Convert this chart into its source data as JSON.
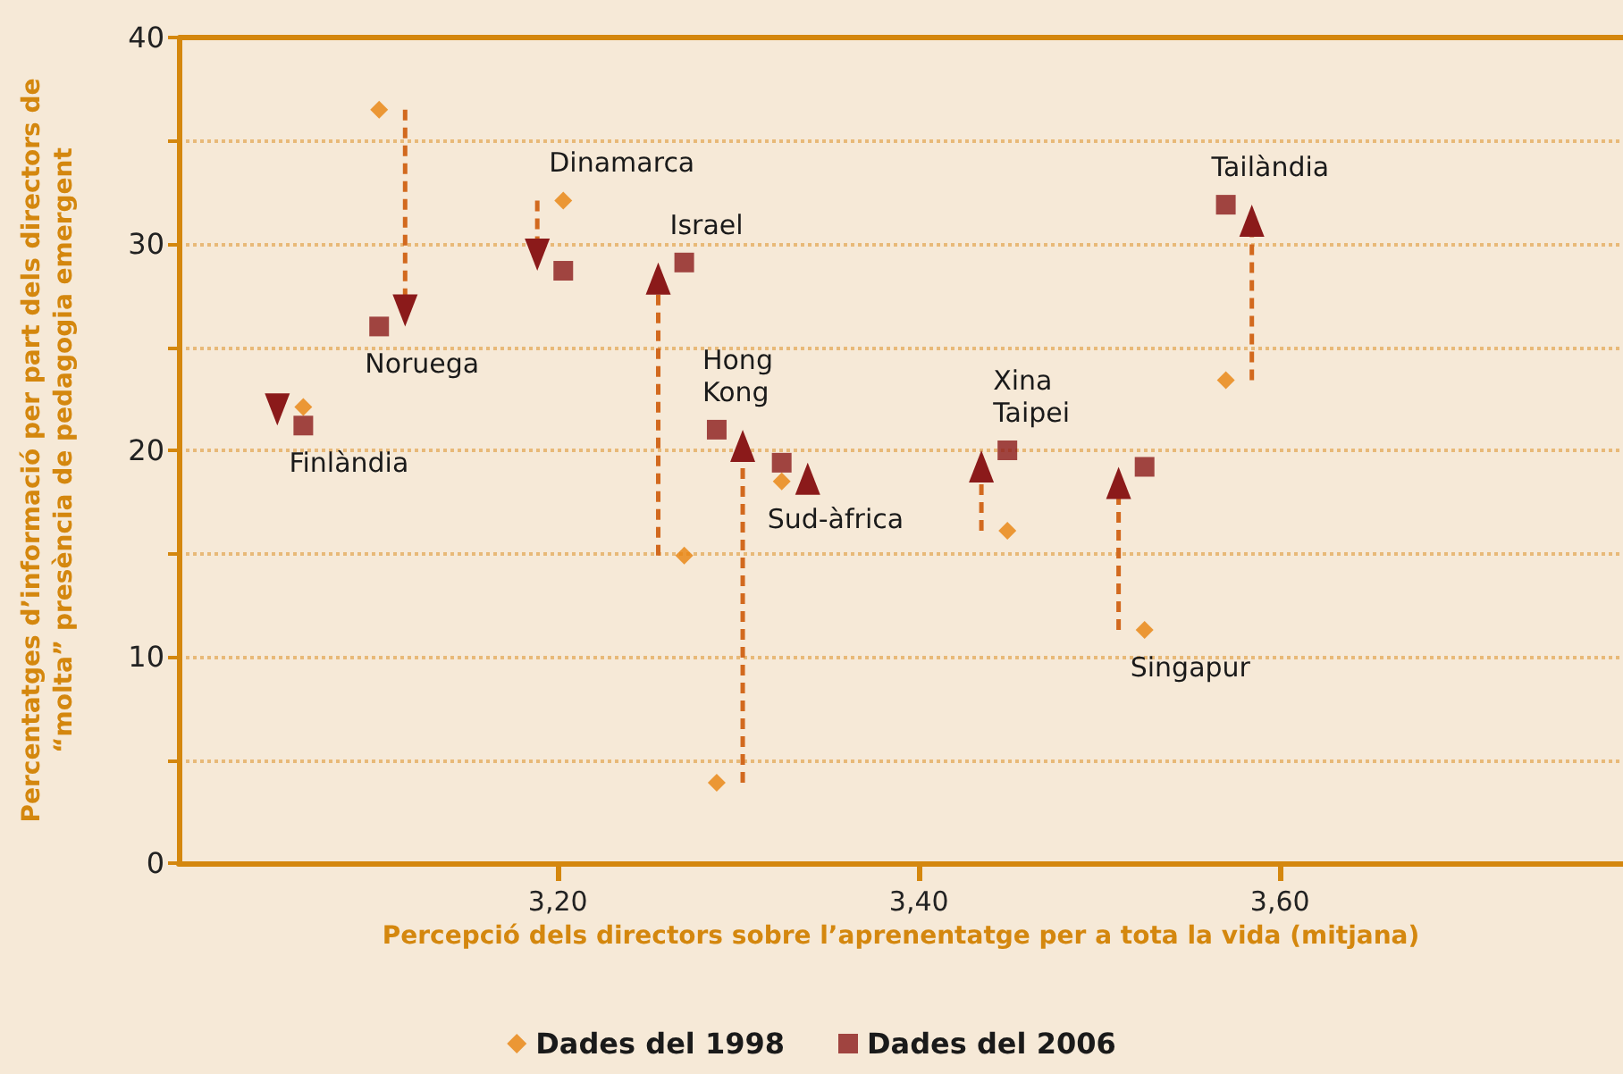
{
  "chart_data": {
    "type": "scatter",
    "xlabel": "Percepció dels directors sobre l’aprenentatge per a tota la vida (mitjana)",
    "ylabel": "Percentatges d’informació per part dels directors de\n“molta” presència de pedagogia emergent",
    "x": [
      3.059,
      3.101,
      3.203,
      3.27,
      3.288,
      3.324,
      3.449,
      3.525,
      3.57
    ],
    "series": [
      {
        "name": "Dades del 1998",
        "color": "#e8820c",
        "marker": "diamond",
        "values": [
          22.1,
          36.5,
          32.1,
          14.9,
          3.9,
          18.5,
          16.1,
          11.3,
          23.4
        ]
      },
      {
        "name": "Dades del 2006",
        "color": "#8b1a1a",
        "marker": "square",
        "values": [
          21.2,
          26.0,
          28.7,
          29.1,
          21.0,
          19.4,
          20.0,
          19.2,
          31.9
        ]
      }
    ],
    "annotations": [
      {
        "text": "Finlàndia",
        "x": 3.059,
        "y": 21.2
      },
      {
        "text": "Noruega",
        "x": 3.101,
        "y": 26.0
      },
      {
        "text": "Dinamarca",
        "x": 3.203,
        "y": 32.1
      },
      {
        "text": "Israel",
        "x": 3.27,
        "y": 29.1
      },
      {
        "text": "Hong\nKong",
        "x": 3.288,
        "y": 21.0
      },
      {
        "text": "Sud-àfrica",
        "x": 3.324,
        "y": 18.5
      },
      {
        "text": "Xina\nTaipei",
        "x": 3.449,
        "y": 20.0
      },
      {
        "text": "Singapur",
        "x": 3.525,
        "y": 11.3
      },
      {
        "text": "Tailàndia",
        "x": 3.57,
        "y": 31.9
      }
    ],
    "xlim": [
      2.99,
      3.79
    ],
    "xticks": [
      {
        "value": 3.2,
        "label": "3,20"
      },
      {
        "value": 3.4,
        "label": "3,40"
      },
      {
        "value": 3.6,
        "label": "3,60"
      }
    ],
    "ylim": [
      0,
      40
    ],
    "yticks": [
      0,
      {
        "value": 5,
        "label": null
      },
      10,
      {
        "value": 15,
        "label": null
      },
      20,
      {
        "value": 25,
        "label": null
      },
      30,
      {
        "value": 35,
        "label": null
      },
      40
    ],
    "grid": "y",
    "legend": "bottom"
  }
}
